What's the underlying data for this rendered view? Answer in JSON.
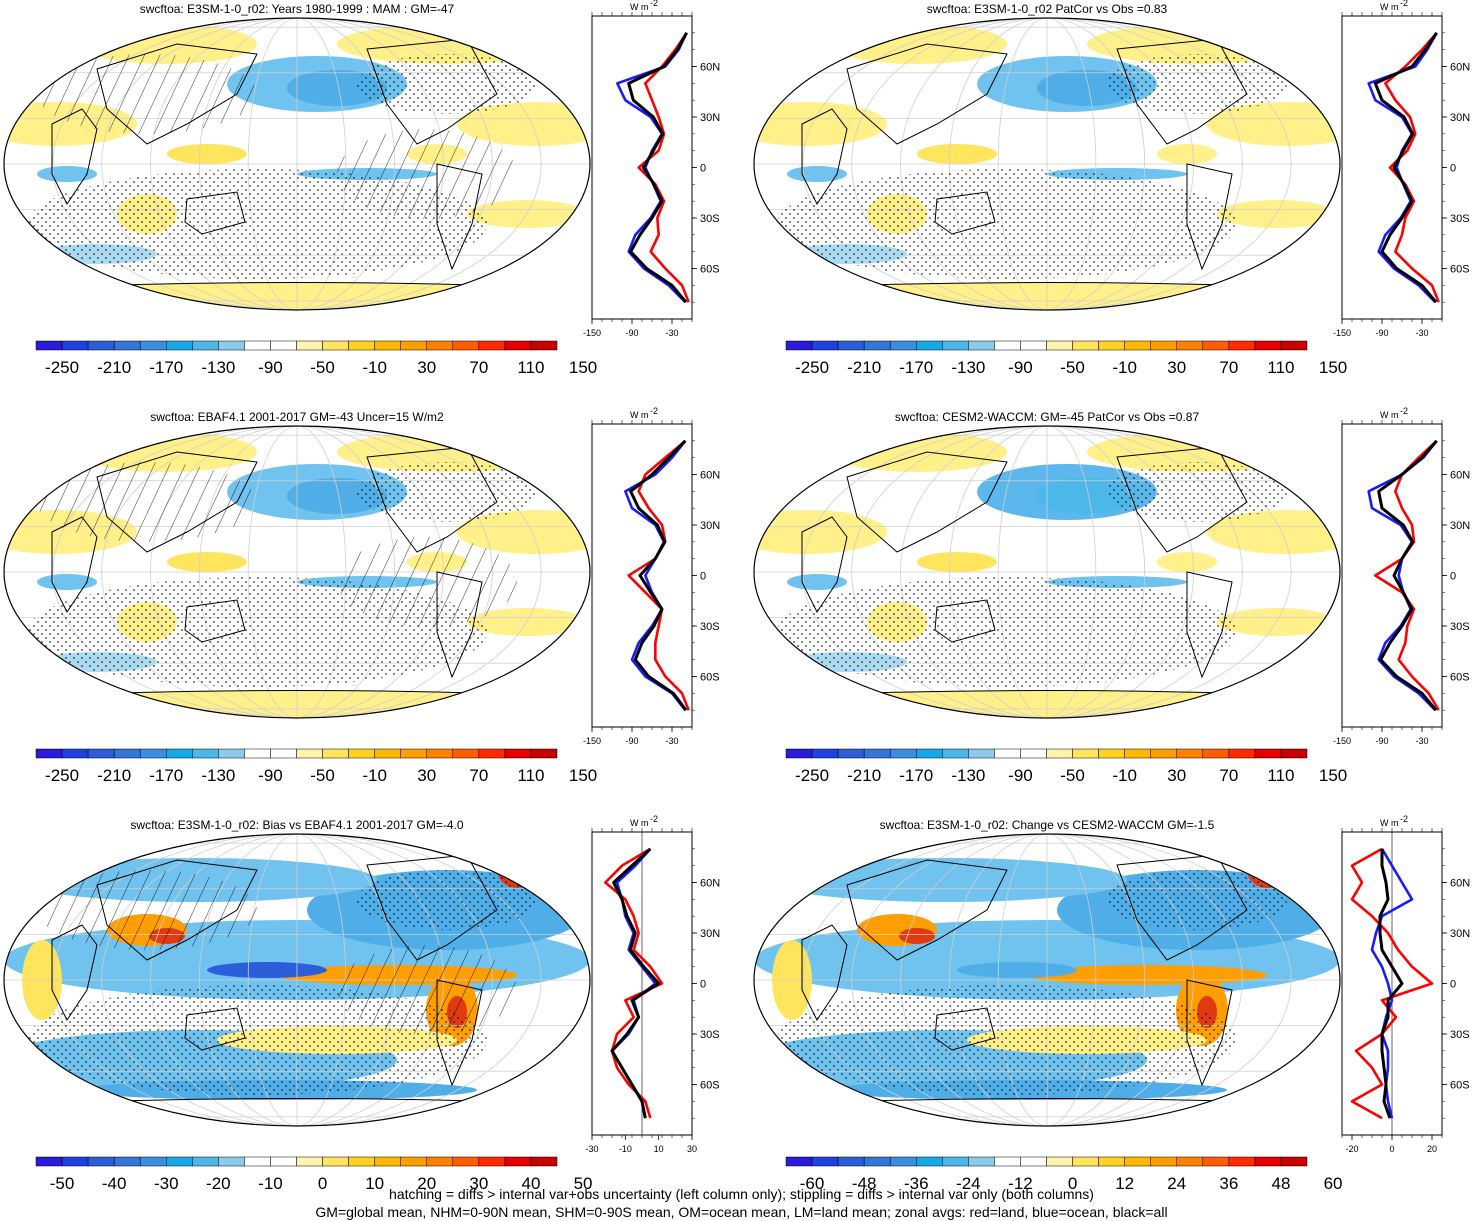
{
  "figure": {
    "variable": "swcftoa",
    "footer": [
      "hatching = diffs > internal var+obs uncertainty (left column only); stippling = diffs > internal var only (both columns)",
      "GM=global mean, NHM=0-90N mean, SHM=0-90S mean, OM=ocean mean, LM=land mean; zonal avgs: red=land, blue=ocean, black=all"
    ]
  },
  "colors": {
    "zonal_land": "#ff0000",
    "zonal_ocean": "#1a1aff",
    "zonal_all": "#000000",
    "absolute_palette": [
      "#2a1bd9",
      "#2040e0",
      "#2b5ed8",
      "#3475d8",
      "#3a8ee0",
      "#16a8e8",
      "#4cb8ea",
      "#8acbea",
      "#ffffff",
      "#ffffff",
      "#fff3b0",
      "#ffe45e",
      "#ffd21f",
      "#ffb800",
      "#ff9e00",
      "#ff8000",
      "#ff5c00",
      "#ff2a00",
      "#e60000",
      "#c80000"
    ],
    "diff_palette": [
      "#2a1bd9",
      "#2040e0",
      "#2b5ed8",
      "#3475d8",
      "#3a8ee0",
      "#16a8e8",
      "#4cb8ea",
      "#8acbea",
      "#ffffff",
      "#ffffff",
      "#fff3b0",
      "#ffe45e",
      "#ffd21f",
      "#ffb800",
      "#ff9e00",
      "#ff8000",
      "#ff5c00",
      "#ff2a00",
      "#e60000",
      "#c80000"
    ]
  },
  "panels": [
    {
      "title": "swcftoa: E3SM-1-0_r02: Years 1980-1999 : MAM : GM=-47",
      "colorbar_labels": [
        "-250",
        "-210",
        "-170",
        "-130",
        "-90",
        "-50",
        "-10",
        "30",
        "70",
        "110",
        "150"
      ],
      "zonal_units": "W m",
      "zonal_units_exp": "-2",
      "zonal_ticks": [
        "-150",
        "-90",
        "-30"
      ],
      "zonal_xlim": [
        -150,
        0
      ],
      "lat_labels": [
        "60N",
        "30N",
        "0",
        "30S",
        "60S"
      ],
      "zonal_profiles": {
        "lat": [
          80,
          70,
          60,
          50,
          40,
          30,
          20,
          10,
          0,
          -10,
          -20,
          -30,
          -40,
          -50,
          -60,
          -70,
          -80
        ],
        "land": [
          -8,
          -25,
          -45,
          -70,
          -60,
          -50,
          -42,
          -50,
          -80,
          -55,
          -42,
          -52,
          -50,
          -62,
          -40,
          -15,
          -5
        ],
        "ocean": [
          -8,
          -20,
          -40,
          -112,
          -100,
          -62,
          -45,
          -60,
          -70,
          -58,
          -47,
          -62,
          -85,
          -95,
          -72,
          -35,
          -10
        ],
        "all": [
          -8,
          -22,
          -42,
          -95,
          -88,
          -58,
          -44,
          -58,
          -73,
          -57,
          -45,
          -60,
          -78,
          -92,
          -68,
          -30,
          -9
        ]
      }
    },
    {
      "title": "swcftoa: E3SM-1-0_r02 PatCor vs Obs =0.83",
      "colorbar_labels": [
        "-250",
        "-210",
        "-170",
        "-130",
        "-90",
        "-50",
        "-10",
        "30",
        "70",
        "110",
        "150"
      ],
      "zonal_units": "W m",
      "zonal_units_exp": "-2",
      "zonal_ticks": [
        "-150",
        "-90",
        "-30"
      ],
      "zonal_xlim": [
        -150,
        0
      ],
      "lat_labels": [
        "60N",
        "30N",
        "0",
        "30S",
        "60S"
      ],
      "zonal_profiles": {
        "lat": [
          80,
          70,
          60,
          50,
          40,
          30,
          20,
          10,
          0,
          -10,
          -20,
          -30,
          -40,
          -50,
          -60,
          -70,
          -80
        ],
        "land": [
          -8,
          -30,
          -55,
          -85,
          -70,
          -48,
          -40,
          -52,
          -78,
          -55,
          -42,
          -55,
          -60,
          -70,
          -45,
          -15,
          -5
        ],
        "ocean": [
          -8,
          -22,
          -40,
          -110,
          -100,
          -60,
          -45,
          -60,
          -68,
          -58,
          -47,
          -62,
          -85,
          -95,
          -72,
          -35,
          -10
        ],
        "all": [
          -8,
          -25,
          -45,
          -100,
          -90,
          -57,
          -44,
          -58,
          -72,
          -57,
          -45,
          -60,
          -78,
          -90,
          -68,
          -30,
          -9
        ]
      }
    },
    {
      "title": "swcftoa: EBAF4.1 2001-2017 GM=-43 Uncer=15 W/m2",
      "colorbar_labels": [
        "-250",
        "-210",
        "-170",
        "-130",
        "-90",
        "-50",
        "-10",
        "30",
        "70",
        "110",
        "150"
      ],
      "zonal_units": "W m",
      "zonal_units_exp": "-2",
      "zonal_ticks": [
        "-150",
        "-90",
        "-30"
      ],
      "zonal_xlim": [
        -150,
        0
      ],
      "lat_labels": [
        "60N",
        "30N",
        "0",
        "30S",
        "60S"
      ],
      "zonal_profiles": {
        "lat": [
          80,
          70,
          60,
          50,
          40,
          30,
          20,
          10,
          0,
          -10,
          -20,
          -30,
          -40,
          -50,
          -60,
          -70,
          -80
        ],
        "land": [
          -10,
          -40,
          -70,
          -80,
          -65,
          -45,
          -40,
          -55,
          -95,
          -70,
          -45,
          -50,
          -55,
          -55,
          -40,
          -15,
          -5
        ],
        "ocean": [
          -10,
          -30,
          -55,
          -100,
          -90,
          -55,
          -42,
          -55,
          -70,
          -60,
          -45,
          -60,
          -80,
          -90,
          -70,
          -30,
          -10
        ],
        "all": [
          -10,
          -35,
          -60,
          -92,
          -80,
          -52,
          -41,
          -55,
          -78,
          -62,
          -45,
          -57,
          -75,
          -85,
          -65,
          -28,
          -9
        ]
      }
    },
    {
      "title": "swcftoa: CESM2-WACCM: GM=-45 PatCor vs Obs =0.87",
      "colorbar_labels": [
        "-250",
        "-210",
        "-170",
        "-130",
        "-90",
        "-50",
        "-10",
        "30",
        "70",
        "110",
        "150"
      ],
      "zonal_units": "W m",
      "zonal_units_exp": "-2",
      "zonal_ticks": [
        "-150",
        "-90",
        "-30"
      ],
      "zonal_xlim": [
        -150,
        0
      ],
      "lat_labels": [
        "60N",
        "30N",
        "0",
        "30S",
        "60S"
      ],
      "zonal_profiles": {
        "lat": [
          80,
          70,
          60,
          50,
          40,
          30,
          20,
          10,
          0,
          -10,
          -20,
          -30,
          -40,
          -50,
          -60,
          -70,
          -80
        ],
        "land": [
          -8,
          -35,
          -60,
          -70,
          -60,
          -45,
          -42,
          -60,
          -100,
          -60,
          -42,
          -52,
          -55,
          -65,
          -45,
          -20,
          -5
        ],
        "ocean": [
          -8,
          -28,
          -60,
          -110,
          -105,
          -62,
          -45,
          -60,
          -65,
          -58,
          -47,
          -62,
          -85,
          -95,
          -72,
          -35,
          -10
        ],
        "all": [
          -8,
          -30,
          -60,
          -95,
          -90,
          -58,
          -44,
          -60,
          -72,
          -58,
          -45,
          -60,
          -78,
          -92,
          -68,
          -30,
          -9
        ]
      }
    },
    {
      "title": "swcftoa: E3SM-1-0_r02: Bias vs EBAF4.1 2001-2017 GM=-4.0",
      "colorbar_labels": [
        "-50",
        "-40",
        "-30",
        "-20",
        "-10",
        "0",
        "10",
        "20",
        "30",
        "40",
        "50"
      ],
      "zonal_units": "W m",
      "zonal_units_exp": "-2",
      "zonal_ticks": [
        "-30",
        "-10",
        "10",
        "30"
      ],
      "zonal_xlim": [
        -30,
        30
      ],
      "lat_labels": [
        "60N",
        "30N",
        "0",
        "30S",
        "60S"
      ],
      "zonal_profiles": {
        "lat": [
          80,
          70,
          60,
          50,
          40,
          30,
          20,
          10,
          0,
          -10,
          -20,
          -30,
          -40,
          -50,
          -60,
          -70,
          -80
        ],
        "land": [
          5,
          -12,
          -22,
          -10,
          -5,
          -2,
          -5,
          5,
          12,
          -10,
          -5,
          -15,
          -18,
          -15,
          -8,
          2,
          5
        ],
        "ocean": [
          5,
          -4,
          -15,
          -12,
          -10,
          -5,
          -8,
          0,
          8,
          -5,
          -2,
          -8,
          -18,
          -12,
          -6,
          0,
          2
        ],
        "all": [
          5,
          -6,
          -17,
          -12,
          -9,
          -4,
          -7,
          1,
          10,
          -6,
          -2,
          -9,
          -18,
          -12,
          -6,
          0,
          2
        ]
      }
    },
    {
      "title": "swcftoa: E3SM-1-0_r02: Change vs CESM2-WACCM GM=-1.5",
      "colorbar_labels": [
        "-60",
        "-48",
        "-36",
        "-24",
        "-12",
        "0",
        "12",
        "24",
        "36",
        "48",
        "60"
      ],
      "zonal_units": "W m",
      "zonal_units_exp": "-2",
      "zonal_ticks": [
        "-20",
        "0",
        "20"
      ],
      "zonal_xlim": [
        -25,
        25
      ],
      "lat_labels": [
        "60N",
        "30N",
        "0",
        "30S",
        "60S"
      ],
      "zonal_profiles": {
        "lat": [
          80,
          70,
          60,
          50,
          40,
          30,
          20,
          10,
          0,
          -10,
          -20,
          -30,
          -40,
          -50,
          -60,
          -70,
          -80
        ],
        "land": [
          -5,
          -20,
          -15,
          -20,
          -10,
          -2,
          3,
          10,
          20,
          -5,
          2,
          -5,
          -18,
          -10,
          -5,
          -20,
          -5
        ],
        "ocean": [
          -5,
          0,
          5,
          10,
          -5,
          -8,
          -10,
          -5,
          -2,
          0,
          -3,
          -5,
          -2,
          -2,
          -3,
          -2,
          0
        ],
        "all": [
          -5,
          -5,
          -3,
          -2,
          -6,
          -6,
          -5,
          0,
          5,
          -2,
          -2,
          -5,
          -5,
          -4,
          -3,
          -4,
          -1
        ]
      }
    }
  ]
}
